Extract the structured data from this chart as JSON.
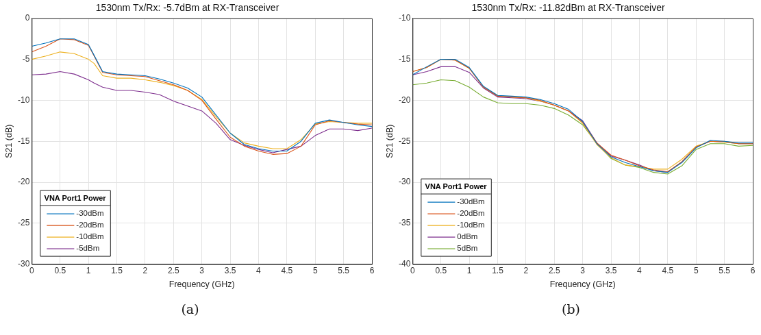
{
  "chart_data": [
    {
      "type": "line",
      "title": "1530nm Tx/Rx: -5.7dBm at RX-Transceiver",
      "xlabel": "Frequency (GHz)",
      "ylabel": "S21 (dB)",
      "legend_title": "VNA Port1 Power",
      "legend": "bottom left",
      "grid": true,
      "line_style": "solid",
      "marker": "none",
      "annotations": [
        "(a)"
      ],
      "xlim": [
        0,
        6
      ],
      "xticks": [
        0,
        0.5,
        1,
        1.5,
        2,
        2.5,
        3,
        3.5,
        4,
        4.5,
        5,
        5.5,
        6
      ],
      "ylim": [
        -30,
        0
      ],
      "yticks": [
        -30,
        -25,
        -20,
        -15,
        -10,
        -5,
        0
      ],
      "x": [
        0,
        0.25,
        0.5,
        0.75,
        1,
        1.1,
        1.25,
        1.5,
        1.75,
        2,
        2.25,
        2.5,
        2.75,
        3,
        3.25,
        3.5,
        3.75,
        4,
        4.25,
        4.5,
        4.75,
        5,
        5.25,
        5.5,
        5.75,
        6
      ],
      "series": [
        {
          "name": "-30dBm",
          "color": "#0072bd",
          "values": [
            -3.4,
            -3.0,
            -2.5,
            -2.5,
            -3.2,
            -4.5,
            -6.5,
            -6.8,
            -6.9,
            -7.0,
            -7.4,
            -7.9,
            -8.5,
            -9.6,
            -11.8,
            -14.0,
            -15.4,
            -15.9,
            -16.2,
            -16.2,
            -15.0,
            -12.8,
            -12.4,
            -12.7,
            -13.0,
            -13.2
          ]
        },
        {
          "name": "-20dBm",
          "color": "#d95319",
          "values": [
            -4.1,
            -3.4,
            -2.5,
            -2.6,
            -3.3,
            -4.6,
            -6.6,
            -6.9,
            -7.0,
            -7.1,
            -7.6,
            -8.1,
            -8.8,
            -10.0,
            -12.3,
            -14.5,
            -15.6,
            -16.2,
            -16.6,
            -16.5,
            -15.6,
            -13.0,
            -12.5,
            -12.7,
            -12.9,
            -13.0
          ]
        },
        {
          "name": "-10dBm",
          "color": "#edb120",
          "values": [
            -5.0,
            -4.6,
            -4.1,
            -4.3,
            -5.0,
            -5.5,
            -7.0,
            -7.3,
            -7.3,
            -7.5,
            -7.8,
            -8.2,
            -8.8,
            -9.9,
            -12.0,
            -14.0,
            -15.2,
            -15.6,
            -15.9,
            -15.9,
            -14.8,
            -12.9,
            -12.6,
            -12.7,
            -12.8,
            -12.8
          ]
        },
        {
          "name": "-5dBm",
          "color": "#7e2f8e",
          "values": [
            -6.9,
            -6.8,
            -6.5,
            -6.8,
            -7.5,
            -7.9,
            -8.4,
            -8.8,
            -8.8,
            -9.0,
            -9.3,
            -10.1,
            -10.7,
            -11.3,
            -12.8,
            -14.8,
            -15.5,
            -16.0,
            -16.4,
            -16.0,
            -15.6,
            -14.3,
            -13.5,
            -13.5,
            -13.7,
            -13.4
          ]
        }
      ]
    },
    {
      "type": "line",
      "title": "1530nm Tx/Rx: -11.82dBm at RX-Transceiver",
      "xlabel": "Frequency (GHz)",
      "ylabel": "S21 (dB)",
      "legend_title": "VNA Port1 Power",
      "legend": "bottom left",
      "grid": true,
      "line_style": "solid",
      "marker": "none",
      "annotations": [
        "(b)"
      ],
      "xlim": [
        0,
        6
      ],
      "xticks": [
        0,
        0.5,
        1,
        1.5,
        2,
        2.5,
        3,
        3.5,
        4,
        4.5,
        5,
        5.5,
        6
      ],
      "ylim": [
        -40,
        -10
      ],
      "yticks": [
        -40,
        -35,
        -30,
        -25,
        -20,
        -15,
        -10
      ],
      "x": [
        0,
        0.25,
        0.5,
        0.75,
        1,
        1.25,
        1.5,
        1.75,
        2,
        2.25,
        2.5,
        2.75,
        3,
        3.25,
        3.5,
        3.75,
        4,
        4.25,
        4.5,
        4.75,
        5,
        5.25,
        5.5,
        5.75,
        6
      ],
      "series": [
        {
          "name": "-30dBm",
          "color": "#0072bd",
          "values": [
            -16.9,
            -15.9,
            -15.0,
            -15.0,
            -16.0,
            -18.3,
            -19.4,
            -19.5,
            -19.6,
            -19.9,
            -20.4,
            -21.1,
            -22.6,
            -25.3,
            -26.9,
            -27.6,
            -28.1,
            -28.6,
            -28.8,
            -27.6,
            -25.8,
            -24.9,
            -25.0,
            -25.2,
            -25.2
          ]
        },
        {
          "name": "-20dBm",
          "color": "#d95319",
          "values": [
            -16.5,
            -16.0,
            -15.0,
            -15.1,
            -16.1,
            -18.4,
            -19.5,
            -19.6,
            -19.7,
            -20.0,
            -20.6,
            -21.3,
            -22.7,
            -25.2,
            -26.7,
            -27.3,
            -28.0,
            -28.5,
            -28.7,
            -27.5,
            -25.7,
            -25.0,
            -25.0,
            -25.3,
            -25.3
          ]
        },
        {
          "name": "-10dBm",
          "color": "#edb120",
          "values": [
            -16.5,
            -16.0,
            -15.0,
            -15.1,
            -16.1,
            -18.4,
            -19.4,
            -19.6,
            -19.7,
            -20.1,
            -20.6,
            -21.3,
            -22.8,
            -25.4,
            -27.0,
            -27.9,
            -28.1,
            -28.4,
            -28.4,
            -27.2,
            -25.6,
            -25.0,
            -25.1,
            -25.3,
            -25.3
          ]
        },
        {
          "name": "0dBm",
          "color": "#7e2f8e",
          "values": [
            -16.9,
            -16.5,
            -15.9,
            -15.9,
            -16.6,
            -18.5,
            -19.6,
            -19.7,
            -19.8,
            -20.1,
            -20.6,
            -21.3,
            -22.5,
            -25.2,
            -26.8,
            -27.3,
            -27.9,
            -28.6,
            -28.8,
            -27.5,
            -25.7,
            -25.0,
            -25.1,
            -25.3,
            -25.3
          ]
        },
        {
          "name": "5dBm",
          "color": "#77ac30",
          "values": [
            -18.1,
            -17.9,
            -17.5,
            -17.6,
            -18.4,
            -19.6,
            -20.3,
            -20.4,
            -20.4,
            -20.6,
            -21.0,
            -21.8,
            -23.0,
            -25.3,
            -27.1,
            -27.9,
            -28.2,
            -28.8,
            -29.0,
            -28.0,
            -26.0,
            -25.3,
            -25.3,
            -25.6,
            -25.5
          ]
        }
      ]
    }
  ]
}
